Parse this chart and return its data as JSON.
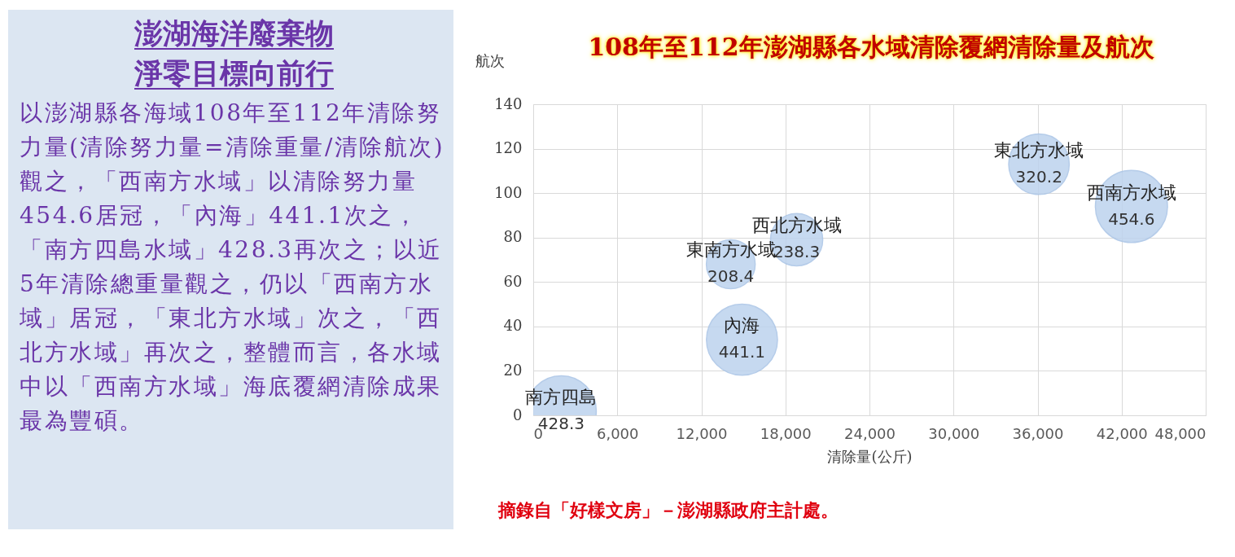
{
  "chart_data": [
    {
      "type": "other",
      "title": "澎湖海洋廢棄物淨零目標向前行",
      "annotations": [
        "以澎湖縣各海域108年至112年清除努力量(清除努力量=清除重量/清除航次)觀之，「西南方水域」以清除努力量454.6居冠，「內海」441.1次之，「南方四島水域」428.3再次之；以近5年清除總重量觀之，仍以「西南方水域」居冠，「東北方水域」次之，「西北方水域」再次之，整體而言，各水域中以「西南方水域」海底覆網清除成果最為豐碩。"
      ]
    },
    {
      "type": "bubble",
      "title": "108年至112年澎湖縣各水域清除覆網清除量及航次",
      "xlabel": "清除量(公斤)",
      "ylabel": "航次",
      "xlim": [
        0,
        48000
      ],
      "xticks": [
        0,
        {
          "value": 6000,
          "label": "6,000"
        },
        {
          "value": 12000,
          "label": "12,000"
        },
        {
          "value": 18000,
          "label": "18,000"
        },
        {
          "value": 24000,
          "label": "24,000"
        },
        {
          "value": 30000,
          "label": "30,000"
        },
        {
          "value": 36000,
          "label": "36,000"
        },
        {
          "value": 42000,
          "label": "42,000"
        },
        {
          "value": 48000,
          "label": "48,000"
        }
      ],
      "ylim": [
        0,
        140
      ],
      "yticks": [
        0,
        20,
        40,
        60,
        80,
        100,
        120,
        140
      ],
      "grid": true,
      "legend": false,
      "series": [
        {
          "name": "南方四島",
          "color": "#bdd3ee",
          "x": [
            2000
          ],
          "values": [
            2
          ],
          "sizes": [
            428.3
          ],
          "value_labels": [
            "428.3"
          ]
        },
        {
          "name": "內海",
          "color": "#bdd3ee",
          "x": [
            14900
          ],
          "values": [
            34
          ],
          "sizes": [
            441.1
          ],
          "value_labels": [
            "441.1"
          ]
        },
        {
          "name": "東南方水域",
          "color": "#bdd3ee",
          "x": [
            14100
          ],
          "values": [
            68
          ],
          "sizes": [
            208.4
          ],
          "value_labels": [
            "208.4"
          ]
        },
        {
          "name": "西北方水域",
          "color": "#bdd3ee",
          "x": [
            18800
          ],
          "values": [
            79
          ],
          "sizes": [
            238.3
          ],
          "value_labels": [
            "238.3"
          ]
        },
        {
          "name": "東北方水域",
          "color": "#bdd3ee",
          "x": [
            36100
          ],
          "values": [
            113
          ],
          "sizes": [
            320.2
          ],
          "value_labels": [
            "320.2"
          ]
        },
        {
          "name": "西南方水域",
          "color": "#bdd3ee",
          "x": [
            42700
          ],
          "values": [
            94
          ],
          "sizes": [
            454.6
          ],
          "value_labels": [
            "454.6"
          ]
        }
      ],
      "annotations": [
        "摘錄自「好樣文房」－澎湖縣政府主計處。"
      ]
    }
  ]
}
